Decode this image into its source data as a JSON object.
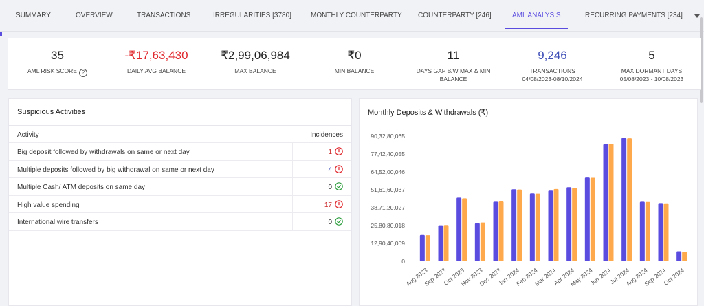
{
  "tabs": [
    {
      "label": "SUMMARY"
    },
    {
      "label": "OVERVIEW"
    },
    {
      "label": "TRANSACTIONS"
    },
    {
      "label": "IRREGULARITIES [3780]"
    },
    {
      "label": "MONTHLY COUNTERPARTY"
    },
    {
      "label": "COUNTERPARTY [246]"
    },
    {
      "label": "AML ANALYSIS"
    },
    {
      "label": "RECURRING PAYMENTS [234]"
    }
  ],
  "active_tab": "AML ANALYSIS",
  "stats": [
    {
      "value": "35",
      "label": "AML RISK SCORE",
      "label2": ""
    },
    {
      "value": "-₹17,63,430",
      "label": "DAILY AVG BALANCE",
      "label2": ""
    },
    {
      "value": "₹2,99,06,984",
      "label": "MAX BALANCE",
      "label2": ""
    },
    {
      "value": "₹0",
      "label": "MIN BALANCE",
      "label2": ""
    },
    {
      "value": "11",
      "label": "DAYS GAP B/W MAX & MIN",
      "label2": "BALANCE"
    },
    {
      "value": "9,246",
      "label": "TRANSACTIONS",
      "label2": "04/08/2023-08/10/2024"
    },
    {
      "value": "5",
      "label": "MAX DORMANT DAYS",
      "label2": "05/08/2023 - 10/08/2023"
    }
  ],
  "suspicious": {
    "title": "Suspicious Activities",
    "col_activity": "Activity",
    "col_incidences": "Incidences",
    "rows": [
      {
        "activity": "Big deposit followed by withdrawals on same or next day",
        "count": "1",
        "status": "alert"
      },
      {
        "activity": "Multiple deposits followed by big withdrawal on same or next day",
        "count": "4",
        "status": "alert"
      },
      {
        "activity": "Multiple Cash/ ATM deposits on same day",
        "count": "0",
        "status": "ok"
      },
      {
        "activity": "High value spending",
        "count": "17",
        "status": "alert"
      },
      {
        "activity": "International wire transfers",
        "count": "0",
        "status": "ok"
      }
    ]
  },
  "colors": {
    "accent": "#5b4ce0",
    "deposit": "#5b4ce0",
    "withdrawal": "#ffa94d",
    "alert": "#e0262b",
    "ok": "#2e9e3e"
  },
  "chart_data": {
    "type": "bar",
    "title": "Monthly Deposits & Withdrawals (₹)",
    "categories": [
      "Aug 2023",
      "Sep 2023",
      "Oct 2023",
      "Nov 2023",
      "Dec 2023",
      "Jan 2024",
      "Feb 2024",
      "Mar 2024",
      "Apr 2024",
      "May 2024",
      "Jun 2024",
      "Jul 2024",
      "Aug 2024",
      "Sep 2024",
      "Oct 2024"
    ],
    "y_ticks": [
      "90,32,80,065",
      "77,42,40,055",
      "64,52,00,046",
      "51,61,60,037",
      "38,71,20,027",
      "25,80,80,018",
      "12,90,40,009",
      "0"
    ],
    "ylim": [
      0,
      903280065
    ],
    "series": [
      {
        "values": [
          190000000,
          260000000,
          460000000,
          275000000,
          430000000,
          520000000,
          490000000,
          510000000,
          535000000,
          605000000,
          845000000,
          890000000,
          430000000,
          420000000,
          72000000
        ]
      },
      {
        "values": [
          188000000,
          262000000,
          455000000,
          280000000,
          432000000,
          518000000,
          488000000,
          522000000,
          530000000,
          603000000,
          848000000,
          888000000,
          428000000,
          418000000,
          68000000
        ]
      }
    ],
    "legend": false,
    "grid": false
  }
}
